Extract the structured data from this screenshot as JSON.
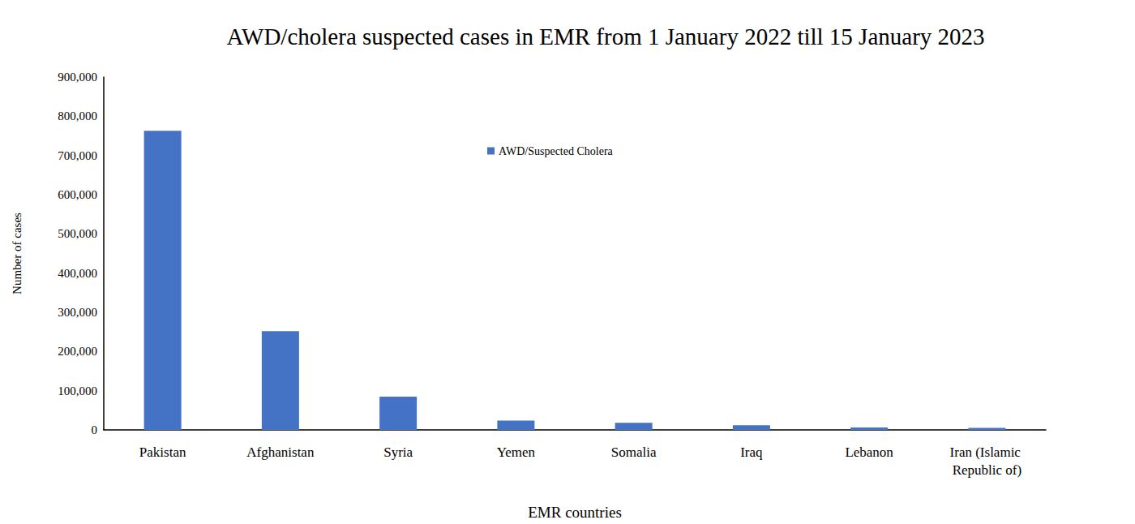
{
  "chart_data": {
    "type": "bar",
    "title": "AWD/cholera suspected cases in EMR from 1 January 2022 till 15 January 2023",
    "x_label": "EMR countries",
    "y_label": "Number of cases",
    "categories": [
      "Pakistan",
      "Afghanistan",
      "Syria",
      "Yemen",
      "Somalia",
      "Iraq",
      "Lebanon",
      "Iran (Islamic Republic of)"
    ],
    "series": [
      {
        "name": "AWD/Suspected Cholera",
        "color": "#4472c4",
        "values": [
          763000,
          252000,
          85000,
          24000,
          18000,
          12000,
          6000,
          5000
        ]
      }
    ],
    "ylim": [
      0,
      900000
    ],
    "yticks": [
      0,
      {
        "value": 100000,
        "label": "100,000"
      },
      {
        "value": 200000,
        "label": "200,000"
      },
      {
        "value": 300000,
        "label": "300,000"
      },
      {
        "value": 400000,
        "label": "400,000"
      },
      {
        "value": 500000,
        "label": "500,000"
      },
      {
        "value": 600000,
        "label": "600,000"
      },
      {
        "value": 700000,
        "label": "700,000"
      },
      {
        "value": 800000,
        "label": "800,000"
      },
      {
        "value": 900000,
        "label": "900,000"
      }
    ],
    "grid": false,
    "legend": "top"
  }
}
